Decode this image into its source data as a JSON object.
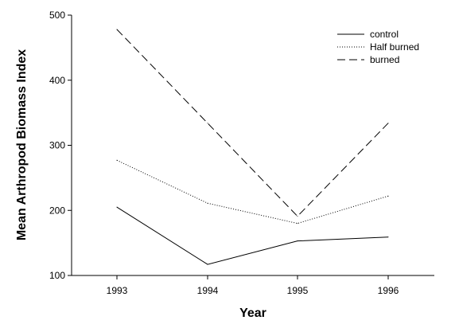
{
  "chart_data": {
    "type": "line",
    "xlabel": "Year",
    "ylabel": "Mean Arthropod  Biomass Index",
    "categories": [
      "1993",
      "1994",
      "1995",
      "1996"
    ],
    "ylim": [
      100,
      500
    ],
    "yticks": [
      "100",
      "200",
      "300",
      "400",
      "500"
    ],
    "legend_position": "top-right",
    "grid": false,
    "series": [
      {
        "name": "control",
        "style": "solid",
        "color": "#000000",
        "values": [
          205,
          117,
          153,
          159
        ]
      },
      {
        "name": "Half burned",
        "style": "dotted",
        "color": "#000000",
        "values": [
          277,
          211,
          180,
          222
        ]
      },
      {
        "name": "burned",
        "style": "dashed",
        "color": "#000000",
        "values": [
          478,
          334,
          191,
          334
        ]
      }
    ]
  }
}
